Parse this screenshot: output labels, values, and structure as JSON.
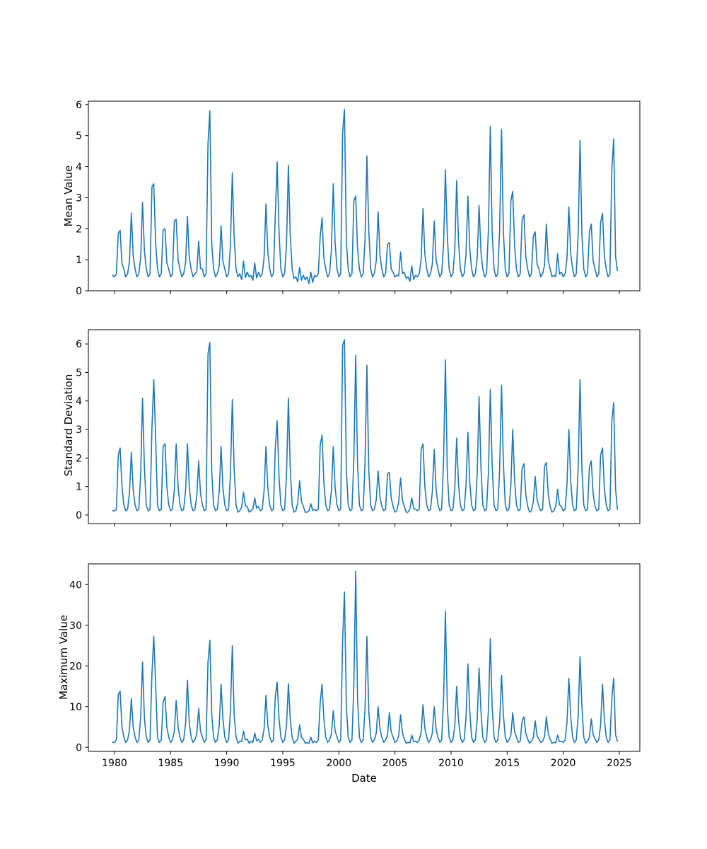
{
  "figure": {
    "background": "#ffffff",
    "line_color": "#1f77b4"
  },
  "x_axis": {
    "label": "Date",
    "ticks": [
      1980,
      1985,
      1990,
      1995,
      2000,
      2005,
      2010,
      2015,
      2020,
      2025
    ],
    "range": [
      1977.67,
      2026.83
    ]
  },
  "chart_data": [
    {
      "type": "line",
      "ylabel": "Mean Value",
      "xlabel": "",
      "yticks": [
        0,
        1,
        2,
        3,
        4,
        5,
        6
      ],
      "ylim": [
        0,
        6.11
      ],
      "x_start": 1979.8333,
      "x_step_years": 0.166667,
      "color": "#1f77b4",
      "series": [
        {
          "name": "mean",
          "values": [
            0.5,
            0.45,
            0.55,
            1.85,
            1.95,
            0.88,
            0.7,
            0.45,
            0.55,
            0.95,
            2.5,
            1.13,
            0.7,
            0.45,
            0.55,
            1.08,
            2.85,
            1.28,
            0.7,
            0.45,
            0.55,
            3.35,
            3.45,
            1.55,
            0.7,
            0.45,
            0.55,
            1.95,
            2.0,
            0.9,
            0.7,
            0.45,
            0.55,
            2.25,
            2.3,
            1.0,
            0.7,
            0.45,
            0.55,
            0.91,
            2.4,
            1.08,
            0.7,
            0.45,
            0.55,
            0.61,
            1.6,
            0.72,
            0.7,
            0.45,
            0.55,
            4.75,
            5.8,
            1.5,
            0.7,
            0.45,
            0.55,
            0.8,
            2.1,
            0.95,
            0.7,
            0.45,
            0.55,
            1.44,
            3.8,
            1.71,
            0.7,
            0.45,
            0.55,
            0.36,
            0.95,
            0.43,
            0.6,
            0.45,
            0.5,
            0.34,
            0.9,
            0.41,
            0.6,
            0.45,
            0.55,
            1.06,
            2.8,
            1.26,
            0.7,
            0.45,
            0.55,
            2.45,
            4.15,
            1.87,
            0.7,
            0.45,
            0.55,
            1.54,
            4.05,
            1.82,
            0.7,
            0.4,
            0.45,
            0.29,
            0.75,
            0.34,
            0.5,
            0.35,
            0.45,
            0.23,
            0.6,
            0.27,
            0.5,
            0.45,
            0.55,
            1.75,
            2.35,
            1.06,
            0.7,
            0.45,
            0.55,
            1.31,
            3.45,
            1.55,
            0.7,
            0.45,
            0.55,
            5.1,
            5.85,
            1.6,
            0.7,
            0.45,
            0.55,
            2.9,
            3.05,
            1.37,
            0.7,
            0.45,
            0.55,
            1.65,
            4.35,
            1.96,
            0.7,
            0.45,
            0.55,
            0.97,
            2.55,
            1.15,
            0.7,
            0.45,
            0.55,
            1.5,
            1.55,
            0.7,
            0.6,
            0.45,
            0.5,
            0.48,
            1.25,
            0.56,
            0.6,
            0.4,
            0.45,
            0.3,
            0.8,
            0.36,
            0.5,
            0.45,
            0.55,
            1.01,
            2.65,
            1.19,
            0.7,
            0.45,
            0.55,
            0.86,
            2.25,
            1.01,
            0.7,
            0.45,
            0.55,
            1.48,
            3.9,
            1.76,
            0.7,
            0.45,
            0.55,
            1.35,
            3.55,
            1.6,
            0.7,
            0.45,
            0.55,
            1.16,
            3.05,
            1.37,
            0.7,
            0.45,
            0.55,
            1.05,
            2.75,
            1.24,
            0.7,
            0.45,
            0.55,
            2.01,
            5.3,
            1.9,
            0.7,
            0.45,
            0.55,
            1.98,
            5.2,
            1.9,
            0.7,
            0.45,
            0.55,
            2.9,
            3.2,
            1.44,
            0.7,
            0.45,
            0.55,
            2.3,
            2.45,
            1.1,
            0.7,
            0.45,
            0.55,
            1.75,
            1.9,
            0.86,
            0.7,
            0.45,
            0.55,
            0.82,
            2.15,
            0.97,
            0.7,
            0.45,
            0.5,
            0.46,
            1.2,
            0.54,
            0.6,
            0.45,
            0.55,
            1.03,
            2.7,
            1.22,
            0.7,
            0.45,
            0.55,
            1.84,
            4.85,
            1.8,
            0.7,
            0.45,
            0.55,
            1.9,
            2.15,
            0.97,
            0.7,
            0.45,
            0.55,
            2.2,
            2.5,
            1.13,
            0.7,
            0.45,
            0.55,
            3.9,
            4.9,
            1.1,
            0.65
          ]
        }
      ]
    },
    {
      "type": "line",
      "ylabel": "Standard Deviation",
      "xlabel": "",
      "yticks": [
        0,
        1,
        2,
        3,
        4,
        5,
        6
      ],
      "ylim": [
        -0.3,
        6.5
      ],
      "x_start": 1979.8333,
      "x_step_years": 0.166667,
      "color": "#1f77b4",
      "series": [
        {
          "name": "std",
          "values": [
            0.15,
            0.15,
            0.2,
            2.1,
            2.35,
            1.0,
            0.35,
            0.15,
            0.2,
            0.77,
            2.2,
            0.88,
            0.35,
            0.15,
            0.2,
            1.44,
            4.1,
            1.64,
            0.35,
            0.15,
            0.2,
            3.05,
            4.75,
            2.75,
            0.35,
            0.15,
            0.2,
            2.4,
            2.5,
            1.0,
            0.35,
            0.15,
            0.2,
            0.88,
            2.5,
            1.0,
            0.35,
            0.15,
            0.2,
            0.88,
            2.5,
            1.0,
            0.35,
            0.15,
            0.2,
            0.67,
            1.9,
            0.76,
            0.35,
            0.15,
            0.2,
            5.65,
            6.05,
            1.5,
            0.35,
            0.15,
            0.2,
            0.84,
            2.4,
            0.96,
            0.35,
            0.15,
            0.2,
            1.42,
            4.05,
            1.62,
            0.35,
            0.1,
            0.15,
            0.28,
            0.8,
            0.32,
            0.3,
            0.1,
            0.15,
            0.21,
            0.6,
            0.24,
            0.3,
            0.15,
            0.2,
            0.84,
            2.4,
            0.96,
            0.35,
            0.15,
            0.2,
            2.35,
            3.3,
            1.32,
            0.35,
            0.15,
            0.2,
            1.44,
            4.1,
            1.64,
            0.35,
            0.1,
            0.15,
            0.42,
            1.2,
            0.48,
            0.3,
            0.1,
            0.1,
            0.14,
            0.4,
            0.16,
            0.2,
            0.15,
            0.2,
            2.45,
            2.8,
            1.12,
            0.35,
            0.15,
            0.2,
            0.84,
            2.4,
            0.96,
            0.35,
            0.15,
            0.2,
            5.95,
            6.15,
            1.6,
            0.35,
            0.15,
            0.2,
            1.96,
            5.6,
            1.8,
            0.35,
            0.15,
            0.2,
            1.84,
            5.25,
            1.6,
            0.35,
            0.15,
            0.2,
            0.54,
            1.55,
            0.62,
            0.3,
            0.15,
            0.2,
            1.45,
            1.5,
            0.6,
            0.3,
            0.1,
            0.15,
            0.46,
            1.3,
            0.52,
            0.3,
            0.1,
            0.1,
            0.21,
            0.6,
            0.24,
            0.2,
            0.15,
            0.2,
            2.3,
            2.5,
            1.0,
            0.35,
            0.15,
            0.2,
            0.81,
            2.3,
            0.92,
            0.35,
            0.15,
            0.2,
            1.91,
            5.45,
            1.5,
            0.35,
            0.15,
            0.2,
            0.95,
            2.7,
            1.08,
            0.35,
            0.15,
            0.2,
            1.02,
            2.9,
            1.16,
            0.35,
            0.15,
            0.2,
            1.45,
            4.15,
            1.66,
            0.35,
            0.15,
            0.2,
            1.54,
            4.4,
            1.76,
            0.35,
            0.15,
            0.2,
            1.59,
            4.55,
            1.82,
            0.35,
            0.15,
            0.2,
            1.05,
            3.0,
            1.2,
            0.35,
            0.15,
            0.2,
            1.65,
            1.8,
            0.72,
            0.3,
            0.1,
            0.15,
            0.47,
            1.35,
            0.54,
            0.3,
            0.15,
            0.2,
            1.7,
            1.85,
            0.74,
            0.3,
            0.1,
            0.15,
            0.32,
            0.9,
            0.36,
            0.3,
            0.15,
            0.2,
            1.05,
            3.0,
            1.2,
            0.35,
            0.15,
            0.2,
            1.66,
            4.75,
            1.6,
            0.35,
            0.15,
            0.2,
            1.7,
            1.9,
            0.76,
            0.3,
            0.15,
            0.2,
            2.1,
            2.35,
            0.94,
            0.35,
            0.15,
            0.2,
            3.3,
            3.95,
            0.9,
            0.2
          ]
        }
      ]
    },
    {
      "type": "line",
      "ylabel": "Maximum Value",
      "xlabel": "Date",
      "yticks": [
        0,
        10,
        20,
        30,
        40
      ],
      "ylim": [
        -1.0,
        45.1
      ],
      "x_start": 1979.8333,
      "x_step_years": 0.166667,
      "color": "#1f77b4",
      "series": [
        {
          "name": "max",
          "values": [
            1.2,
            1.2,
            1.8,
            13.0,
            13.8,
            5.0,
            2.5,
            1.2,
            1.8,
            4.2,
            12.0,
            5.0,
            2.5,
            1.2,
            1.8,
            7.4,
            21.0,
            7.0,
            2.5,
            1.2,
            1.8,
            18.0,
            27.3,
            15.7,
            2.5,
            1.2,
            1.8,
            11.0,
            12.5,
            5.0,
            2.5,
            1.2,
            1.8,
            4.0,
            11.5,
            5.0,
            2.5,
            1.2,
            1.8,
            5.8,
            16.5,
            6.0,
            2.5,
            1.2,
            1.8,
            3.3,
            9.5,
            4.0,
            2.5,
            1.2,
            1.8,
            21.0,
            26.3,
            8.0,
            2.5,
            1.2,
            1.8,
            5.4,
            15.5,
            7.0,
            2.5,
            1.2,
            1.8,
            8.8,
            25.0,
            8.0,
            2.5,
            1.0,
            1.5,
            1.4,
            4.0,
            1.8,
            2.0,
            1.0,
            1.5,
            1.2,
            3.5,
            1.6,
            2.0,
            1.2,
            1.8,
            4.5,
            12.8,
            5.5,
            2.5,
            1.2,
            1.8,
            12.5,
            16.0,
            7.0,
            2.5,
            1.2,
            1.8,
            5.5,
            15.7,
            7.0,
            2.5,
            1.0,
            1.5,
            1.9,
            5.5,
            2.5,
            2.0,
            1.0,
            1.2,
            0.9,
            2.5,
            1.1,
            1.5,
            1.2,
            1.8,
            11.0,
            15.5,
            7.0,
            2.5,
            1.2,
            1.8,
            3.2,
            9.0,
            4.0,
            2.5,
            1.2,
            1.8,
            26.2,
            38.2,
            10.0,
            2.5,
            1.2,
            1.8,
            15.2,
            43.3,
            12.0,
            2.5,
            1.2,
            1.8,
            9.6,
            27.3,
            9.0,
            2.5,
            1.2,
            1.8,
            3.5,
            10.0,
            4.5,
            2.5,
            1.2,
            1.8,
            3.0,
            8.5,
            3.8,
            2.5,
            1.2,
            1.5,
            2.8,
            8.0,
            3.6,
            2.0,
            1.0,
            1.2,
            1.1,
            3.0,
            1.4,
            1.5,
            1.2,
            1.8,
            3.7,
            10.5,
            4.7,
            2.5,
            1.2,
            1.8,
            3.5,
            10.0,
            4.5,
            2.5,
            1.2,
            1.8,
            11.7,
            33.5,
            10.0,
            2.5,
            1.2,
            1.8,
            5.3,
            15.0,
            6.8,
            2.5,
            1.2,
            1.8,
            7.2,
            20.5,
            9.0,
            2.5,
            1.2,
            1.8,
            6.8,
            19.5,
            8.8,
            2.5,
            1.2,
            1.8,
            9.3,
            26.7,
            10.0,
            2.5,
            1.2,
            1.8,
            6.2,
            17.7,
            8.0,
            2.5,
            1.2,
            1.8,
            3.0,
            8.5,
            3.8,
            2.5,
            1.2,
            1.5,
            6.5,
            7.5,
            3.4,
            2.0,
            1.0,
            1.5,
            2.3,
            6.5,
            2.9,
            2.0,
            1.2,
            1.5,
            2.6,
            7.5,
            3.4,
            2.0,
            1.0,
            1.2,
            1.1,
            3.0,
            1.4,
            1.5,
            1.2,
            1.8,
            6.0,
            17.0,
            7.7,
            2.5,
            1.2,
            1.8,
            7.8,
            22.3,
            10.0,
            2.5,
            1.0,
            1.5,
            2.5,
            7.0,
            3.2,
            2.0,
            1.2,
            1.8,
            5.4,
            15.5,
            7.0,
            2.5,
            1.2,
            1.8,
            12.0,
            17.0,
            3.0,
            1.5
          ]
        }
      ]
    }
  ]
}
